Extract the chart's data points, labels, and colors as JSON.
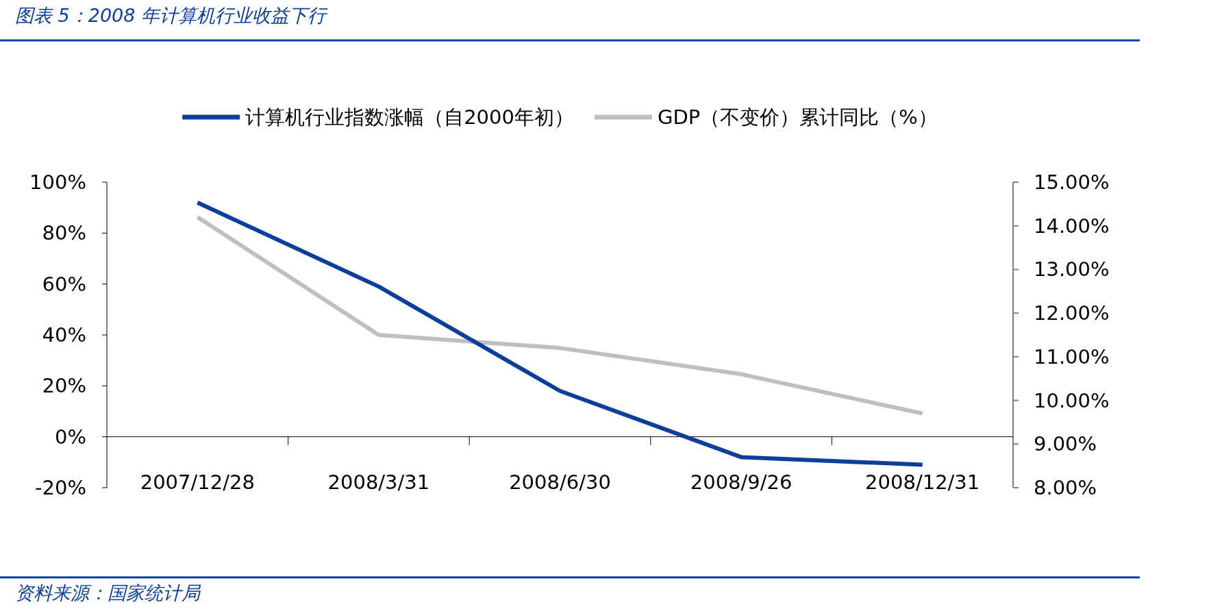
{
  "chart_data": {
    "type": "line",
    "title": "图表 5：2008 年计算机行业收益下行",
    "categories": [
      "2007/12/28",
      "2008/3/31",
      "2008/6/30",
      "2008/9/26",
      "2008/12/31"
    ],
    "series": [
      {
        "name": "计算机行业指数涨幅（自2000年初）",
        "color": "#0b3f9b",
        "values": [
          92,
          59,
          18,
          -8,
          -11
        ]
      },
      {
        "name": "GDP（不变价）累计同比（%）",
        "color": "#bfbfbf",
        "axis": "y2",
        "values": [
          14.2,
          11.5,
          11.2,
          10.6,
          9.7
        ]
      }
    ],
    "ylim": [
      -20,
      100
    ],
    "yticks": [
      {
        "value": -20,
        "label": "-20%"
      },
      {
        "value": 0,
        "label": "0%"
      },
      {
        "value": 20,
        "label": "20%"
      },
      {
        "value": 40,
        "label": "40%"
      },
      {
        "value": 60,
        "label": "60%"
      },
      {
        "value": 80,
        "label": "80%"
      },
      {
        "value": 100,
        "label": "100%"
      }
    ],
    "y2lim": [
      8,
      15
    ],
    "y2ticks": [
      {
        "value": 8,
        "label": "8.00%"
      },
      {
        "value": 9,
        "label": "9.00%"
      },
      {
        "value": 10,
        "label": "10.00%"
      },
      {
        "value": 11,
        "label": "11.00%"
      },
      {
        "value": 12,
        "label": "12.00%"
      },
      {
        "value": 13,
        "label": "13.00%"
      },
      {
        "value": 14,
        "label": "14.00%"
      },
      {
        "value": 15,
        "label": "15.00%"
      }
    ],
    "grid": false,
    "legend": "top",
    "annotations": [
      "资料来源：国家统计局"
    ]
  }
}
